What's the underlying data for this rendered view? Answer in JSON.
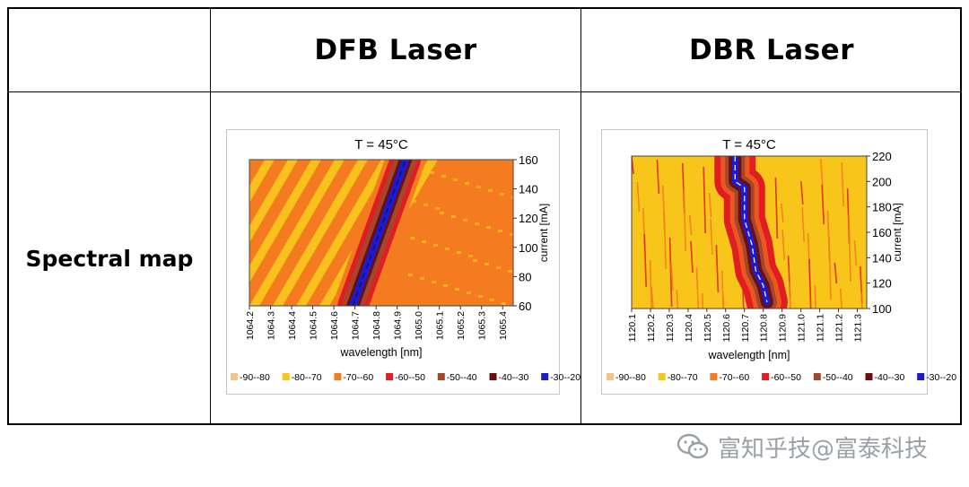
{
  "table": {
    "col1_header": "DFB Laser",
    "col2_header": "DBR Laser",
    "row_label": "Spectral map"
  },
  "legend_items": [
    {
      "label": "-90--80",
      "color": "#F5C28A"
    },
    {
      "label": "-80--70",
      "color": "#F8C51B"
    },
    {
      "label": "-70--60",
      "color": "#F47B20"
    },
    {
      "label": "-60--50",
      "color": "#E01E22"
    },
    {
      "label": "-50--40",
      "color": "#A3472A"
    },
    {
      "label": "-40--30",
      "color": "#6B0E12"
    },
    {
      "label": "-30--20",
      "color": "#1B1BD6"
    }
  ],
  "chart_data": [
    {
      "type": "heatmap",
      "title": "T = 45°C",
      "xlabel": "wavelength [nm]",
      "ylabel": "current [mA]",
      "xlim": [
        1064.2,
        1065.45
      ],
      "ylim": [
        60,
        160
      ],
      "x_ticks": [
        "1064.2",
        "1064.3",
        "1064.4",
        "1064.5",
        "1064.6",
        "1064.7",
        "1064.8",
        "1064.9",
        "1065.0",
        "1065.1",
        "1065.2",
        "1065.3",
        "1065.4"
      ],
      "y_ticks": [
        "60",
        "80",
        "100",
        "120",
        "140",
        "160"
      ],
      "peak_line": {
        "x": [
          1064.69,
          1064.94
        ],
        "y": [
          60,
          160
        ]
      },
      "legend_position": "bottom"
    },
    {
      "type": "heatmap",
      "title": "T = 45°C",
      "xlabel": "wavelength [nm]",
      "ylabel": "current [mA]",
      "xlim": [
        1120.1,
        1121.35
      ],
      "ylim": [
        100,
        220
      ],
      "x_ticks": [
        "1120.1",
        "1120.2",
        "1120.3",
        "1120.4",
        "1120.5",
        "1120.6",
        "1120.7",
        "1120.8",
        "1120.9",
        "1121.0",
        "1121.1",
        "1121.2",
        "1121.3"
      ],
      "y_ticks": [
        "100",
        "120",
        "140",
        "160",
        "180",
        "200",
        "220"
      ],
      "peak_line": {
        "x": [
          1120.65,
          1120.65,
          1120.7,
          1120.7,
          1120.74,
          1120.76,
          1120.8,
          1120.82
        ],
        "y": [
          220,
          200,
          195,
          170,
          150,
          130,
          118,
          105
        ]
      },
      "legend_position": "bottom"
    }
  ],
  "watermark": {
    "text": "富知乎技@富泰科技",
    "icon": "wechat-icon"
  }
}
